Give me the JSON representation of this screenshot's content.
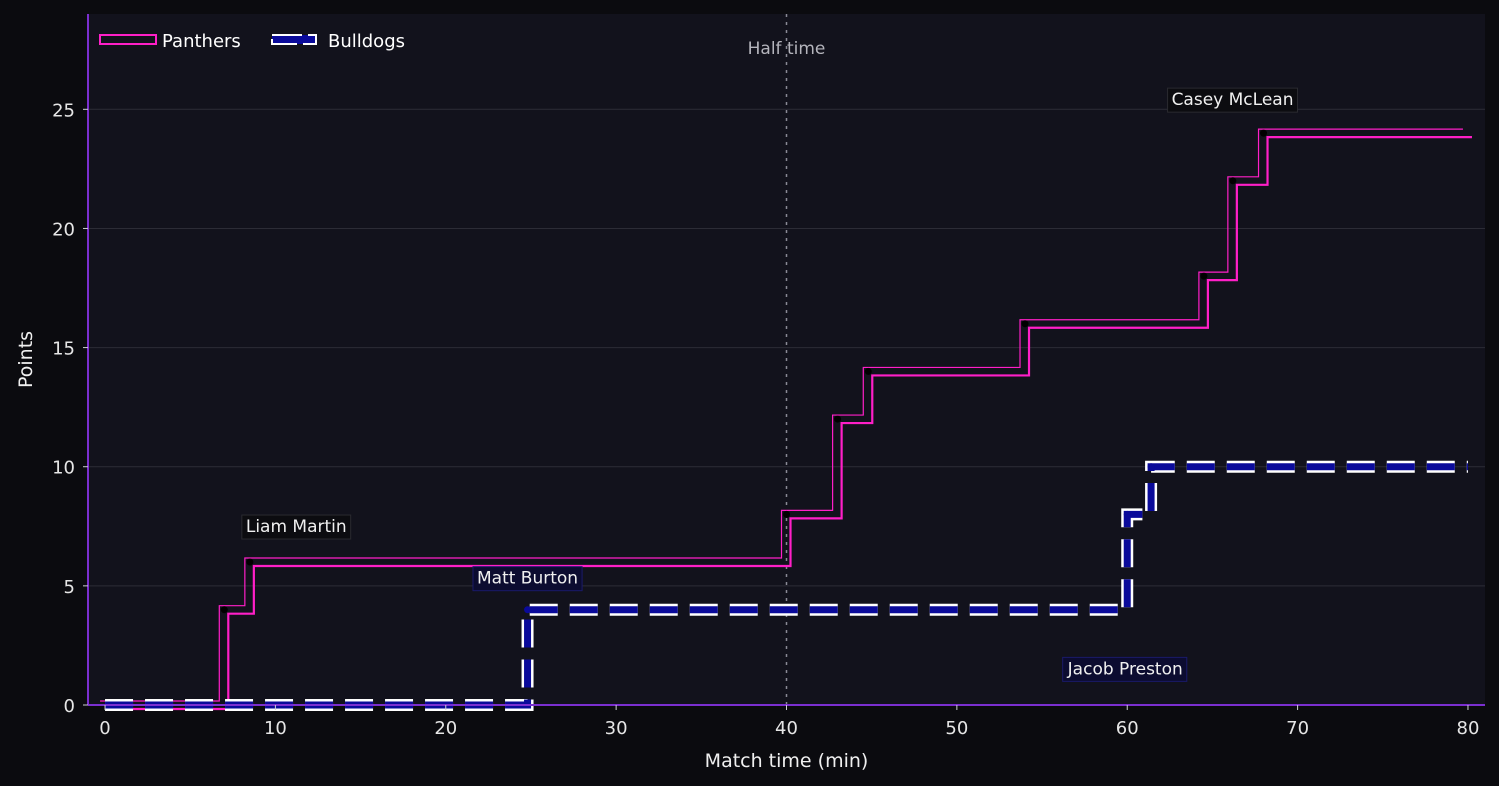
{
  "chart_data": {
    "type": "line",
    "step": "post",
    "xlabel": "Match time (min)",
    "ylabel": "Points",
    "xlim": [
      -1,
      81
    ],
    "ylim": [
      0,
      29
    ],
    "xticks": [
      0,
      10,
      20,
      30,
      40,
      50,
      60,
      70,
      80
    ],
    "yticks": [
      0,
      5,
      10,
      15,
      20,
      25
    ],
    "grid": "horizontal",
    "legend_position": "top-left",
    "colors": {
      "background": "#0b0b0f",
      "plot_background": "#12121c",
      "grid": "#2c2c36",
      "axis": "#7b2fd0",
      "panthers": "#ff1fc8",
      "bulldogs": "#0a0a9a",
      "bulldogs_outline": "#ffffff",
      "half_time": "#8a8a96"
    },
    "series": [
      {
        "name": "Panthers",
        "x": [
          0,
          7,
          8.5,
          40,
          43,
          44.8,
          54,
          64.5,
          66.2,
          68,
          80
        ],
        "y": [
          0,
          4,
          6,
          8,
          12,
          14,
          16,
          18,
          22,
          24,
          24
        ]
      },
      {
        "name": "Bulldogs",
        "x": [
          0,
          24.8,
          60,
          61.4,
          80
        ],
        "y": [
          0,
          4,
          8,
          10,
          10
        ]
      }
    ],
    "annotations": [
      {
        "text": "Liam Martin",
        "x": 8.5,
        "y": 6,
        "style": "dark"
      },
      {
        "text": "Matt Burton",
        "x": 24.8,
        "y": 4,
        "style": "blue"
      },
      {
        "text": "Jacob Preston",
        "x": 60,
        "y": 8,
        "style": "blue"
      },
      {
        "text": "Casey McLean",
        "x": 68,
        "y": 24,
        "style": "dark"
      }
    ],
    "vline": {
      "x": 40,
      "label": "Half time"
    }
  }
}
